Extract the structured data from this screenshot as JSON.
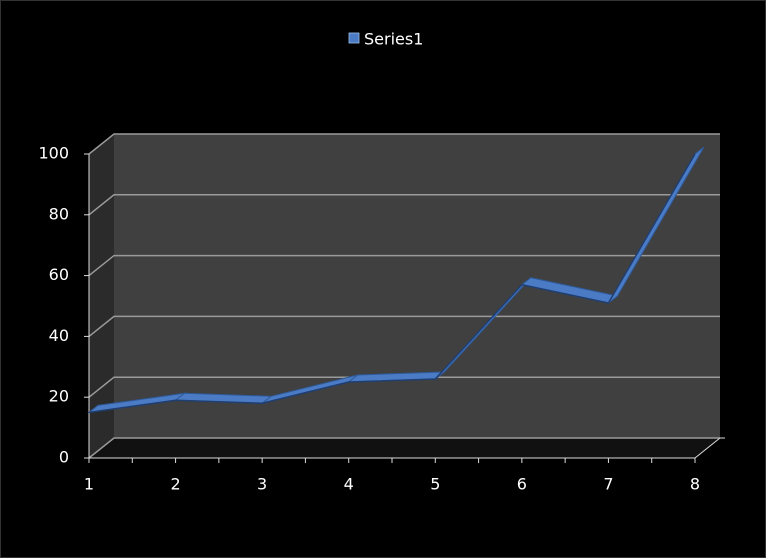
{
  "chart_data": {
    "type": "line3d",
    "categories": [
      "1",
      "2",
      "3",
      "4",
      "5",
      "6",
      "7",
      "8"
    ],
    "series": [
      {
        "name": "Series1",
        "color": "#4a7bc4",
        "values": [
          15,
          19,
          18,
          25,
          26,
          57,
          51,
          100
        ]
      }
    ],
    "ylim": [
      0,
      100
    ],
    "yticks": [
      0,
      20,
      40,
      60,
      80,
      100
    ],
    "grid": true,
    "legend": "top"
  }
}
